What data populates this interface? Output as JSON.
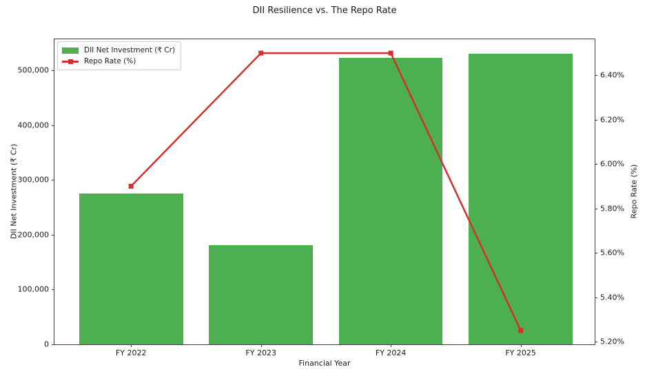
{
  "figure": {
    "title": "DII Resilience vs. The Repo Rate"
  },
  "legend": {
    "bar_label": "DII Net Investment (₹ Cr)",
    "line_label": "Repo Rate (%)"
  },
  "colors": {
    "bar": "#4caf50",
    "line": "#d32f2f",
    "text": "#1a1a1a",
    "spine": "#3a3a3a",
    "legend_border": "#cccccc"
  },
  "chart_data": {
    "type": "bar",
    "title": "DII Resilience vs. The Repo Rate",
    "xlabel": "Financial Year",
    "categories": [
      "FY 2022",
      "FY 2023",
      "FY 2024",
      "FY 2025"
    ],
    "series": [
      {
        "name": "DII Net Investment (₹ Cr)",
        "type": "bar",
        "axis": "left",
        "color": "#4caf50",
        "values": [
          275000,
          181000,
          523000,
          530000
        ]
      },
      {
        "name": "Repo Rate (%)",
        "type": "line",
        "axis": "right",
        "color": "#d32f2f",
        "marker": "square",
        "values": [
          5.9,
          6.5,
          6.5,
          5.25
        ]
      }
    ],
    "left_axis": {
      "label": "DII Net Investment (₹ Cr)",
      "ticks": [
        0,
        100000,
        200000,
        300000,
        400000,
        500000
      ],
      "tick_labels": [
        "0",
        "100,000",
        "200,000",
        "300,000",
        "400,000",
        "500,000"
      ],
      "ylim": [
        0,
        556500
      ]
    },
    "right_axis": {
      "label": "Repo Rate (%)",
      "ticks": [
        5.2,
        5.4,
        5.6,
        5.8,
        6.0,
        6.2,
        6.4
      ],
      "tick_labels": [
        "5.20%",
        "5.40%",
        "5.60%",
        "5.80%",
        "6.00%",
        "6.20%",
        "6.40%"
      ],
      "ylim": [
        5.1875,
        6.5625
      ]
    },
    "xlim": [
      -0.59,
      3.57
    ],
    "bar_width": 0.8,
    "grid": false,
    "legend_position": "upper left"
  }
}
